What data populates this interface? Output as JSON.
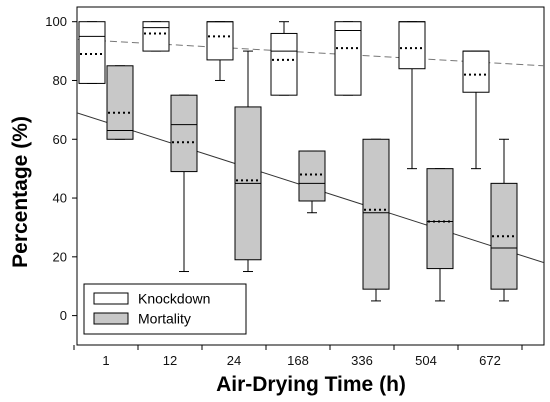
{
  "chart_data": {
    "type": "box",
    "xlabel": "Air-Drying Time (h)",
    "ylabel": "Percentage (%)",
    "categories": [
      "1",
      "12",
      "24",
      "168",
      "336",
      "504",
      "672"
    ],
    "ylim": [
      -10,
      105
    ],
    "yticks": [
      0,
      20,
      40,
      60,
      80,
      100
    ],
    "grid": false,
    "legend_position": "bottom-left",
    "series": [
      {
        "name": "Knockdown",
        "fill": "#ffffff",
        "boxes": [
          {
            "category": "1",
            "whisker_low": 79,
            "q1": 79,
            "median": 95,
            "q3": 100,
            "whisker_high": 100,
            "mean": 89
          },
          {
            "category": "12",
            "whisker_low": 90,
            "q1": 90,
            "median": 98,
            "q3": 100,
            "whisker_high": 100,
            "mean": 96
          },
          {
            "category": "24",
            "whisker_low": 80,
            "q1": 87,
            "median": 100,
            "q3": 100,
            "whisker_high": 100,
            "mean": 95
          },
          {
            "category": "168",
            "whisker_low": 75,
            "q1": 75,
            "median": 90,
            "q3": 96,
            "whisker_high": 100,
            "mean": 87
          },
          {
            "category": "336",
            "whisker_low": 75,
            "q1": 75,
            "median": 97,
            "q3": 100,
            "whisker_high": 100,
            "mean": 91
          },
          {
            "category": "504",
            "whisker_low": 50,
            "q1": 84,
            "median": 100,
            "q3": 100,
            "whisker_high": 100,
            "mean": 91
          },
          {
            "category": "672",
            "whisker_low": 50,
            "q1": 76,
            "median": 90,
            "q3": 90,
            "whisker_high": 90,
            "mean": 82
          }
        ],
        "trendline": {
          "style": "dashed",
          "start": 94,
          "end": 85
        }
      },
      {
        "name": "Mortality",
        "fill": "#c8c8c8",
        "boxes": [
          {
            "category": "1",
            "whisker_low": 60,
            "q1": 60,
            "median": 63,
            "q3": 85,
            "whisker_high": 85,
            "mean": 69
          },
          {
            "category": "12",
            "whisker_low": 15,
            "q1": 49,
            "median": 65,
            "q3": 75,
            "whisker_high": 75,
            "mean": 59
          },
          {
            "category": "24",
            "whisker_low": 15,
            "q1": 19,
            "median": 45,
            "q3": 71,
            "whisker_high": 90,
            "mean": 46
          },
          {
            "category": "168",
            "whisker_low": 35,
            "q1": 39,
            "median": 45,
            "q3": 56,
            "whisker_high": 56,
            "mean": 48
          },
          {
            "category": "336",
            "whisker_low": 5,
            "q1": 9,
            "median": 35,
            "q3": 60,
            "whisker_high": 60,
            "mean": 36
          },
          {
            "category": "504",
            "whisker_low": 5,
            "q1": 16,
            "median": 32,
            "q3": 50,
            "whisker_high": 50,
            "mean": 32
          },
          {
            "category": "672",
            "whisker_low": 5,
            "q1": 9,
            "median": 23,
            "q3": 45,
            "whisker_high": 60,
            "mean": 27
          }
        ],
        "trendline": {
          "style": "solid",
          "start": 69,
          "end": 18
        }
      }
    ]
  }
}
